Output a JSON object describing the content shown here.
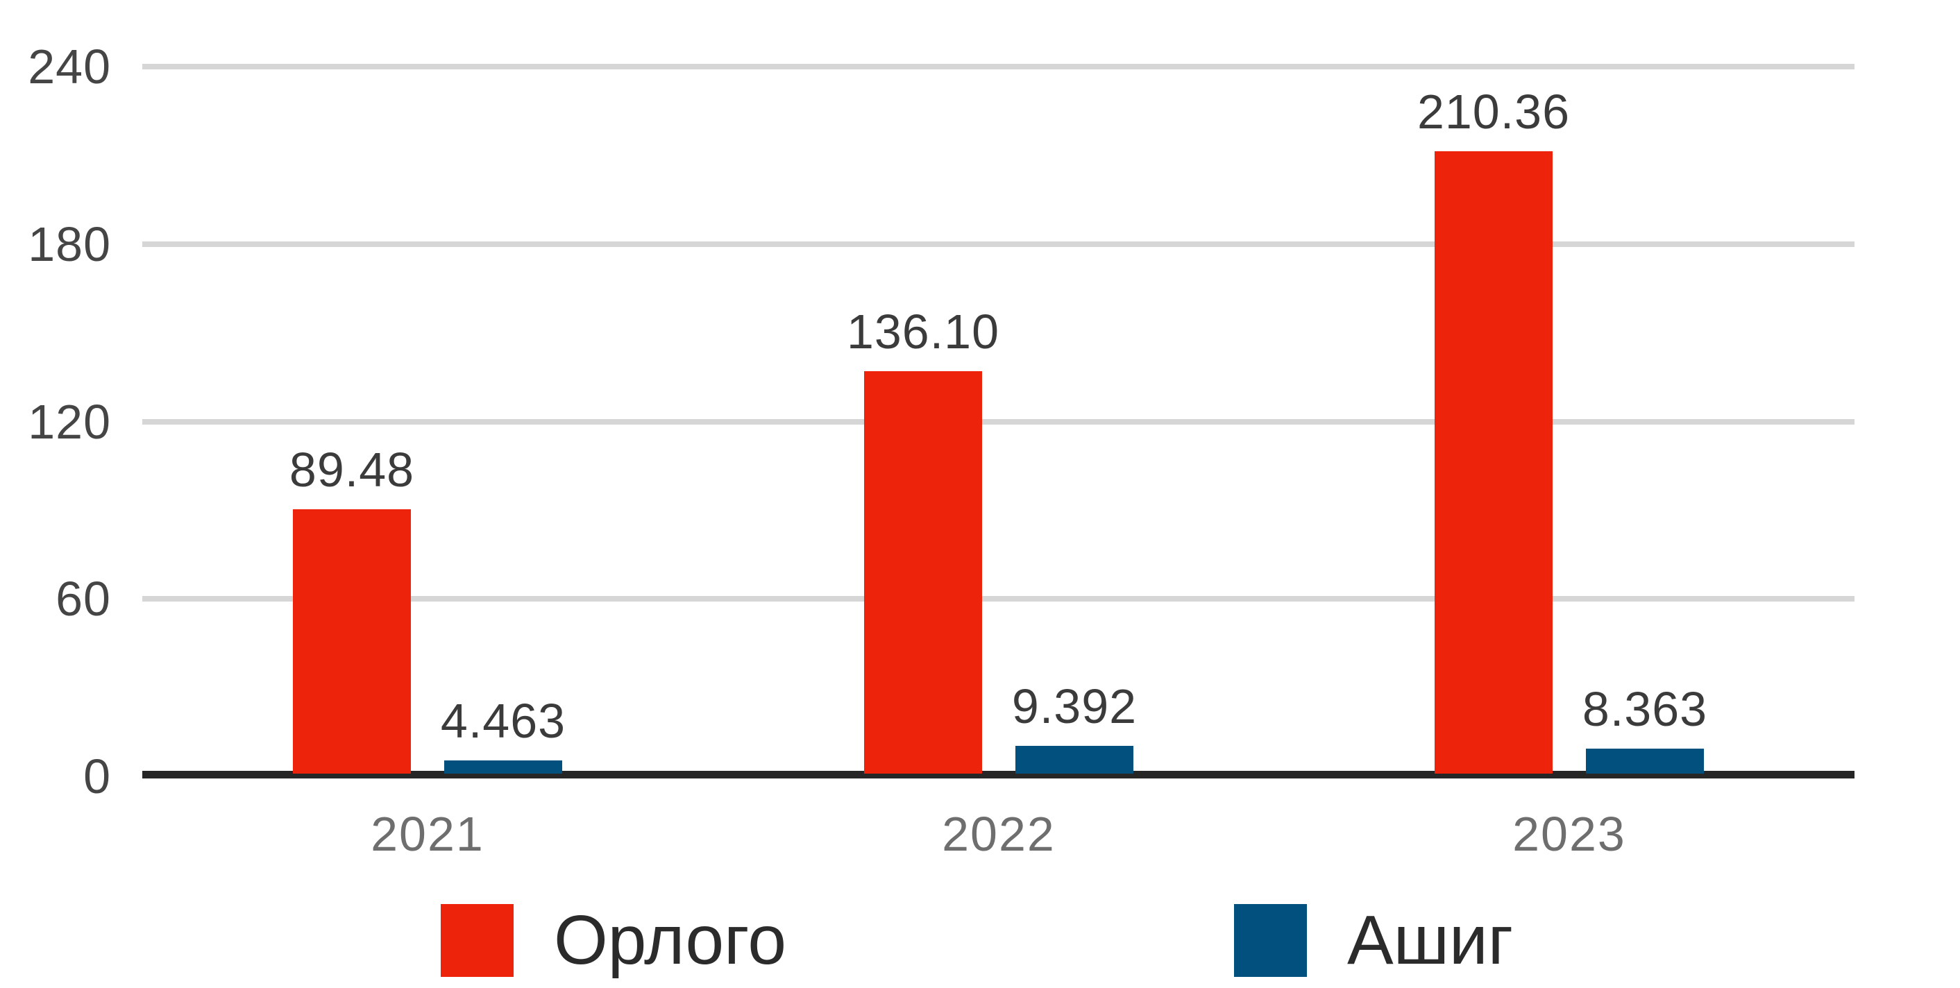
{
  "chart_data": {
    "type": "bar",
    "categories": [
      "2021",
      "2022",
      "2023"
    ],
    "series": [
      {
        "name": "Орлого",
        "color": "#ED230C",
        "values": [
          89.48,
          136.1,
          210.36
        ],
        "labels": [
          "89.48",
          "136.10",
          "210.36"
        ]
      },
      {
        "name": "Ашиг",
        "color": "#02507E",
        "values": [
          4.463,
          9.392,
          8.363
        ],
        "labels": [
          "4.463",
          "9.392",
          "8.363"
        ]
      }
    ],
    "title": "",
    "xlabel": "",
    "ylabel": "",
    "ylim": [
      0,
      240
    ],
    "yticks": [
      0,
      60,
      120,
      180,
      240
    ],
    "grid": true,
    "legend_position": "bottom"
  },
  "colors": {
    "background": "#FFFFFF",
    "grid": "#D6D6D6",
    "axis": "#262626",
    "y_tick_label": "#454545",
    "x_tick_label": "#6E6E6E",
    "data_label": "#3B3B3B",
    "legend_text": "#2B2B2B"
  }
}
